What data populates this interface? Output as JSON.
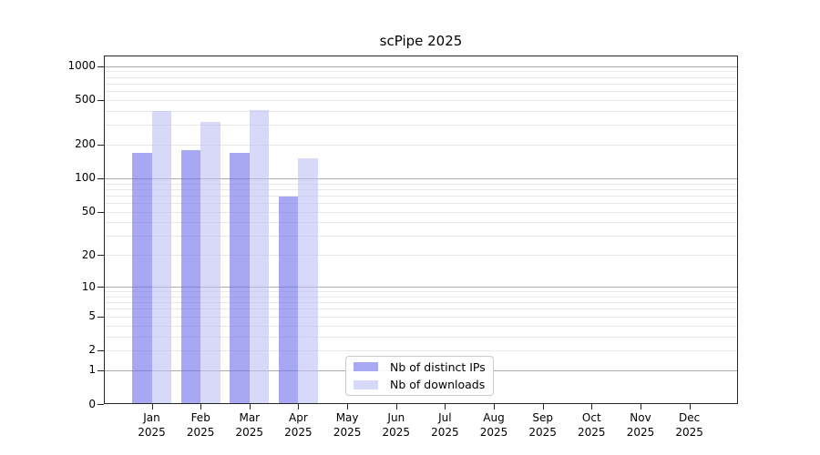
{
  "title": "scPipe 2025",
  "legend": {
    "items": [
      {
        "label": "Nb of distinct IPs",
        "color": "#a9a9f3"
      },
      {
        "label": "Nb of downloads",
        "color": "#d8d8f8"
      }
    ]
  },
  "axis": {
    "y_tick_labels": [
      "1000",
      "500",
      "200",
      "100",
      "50",
      "20",
      "10",
      "5",
      "2",
      "1",
      "0"
    ],
    "y_tick_values": [
      1000,
      500,
      200,
      100,
      50,
      20,
      10,
      5,
      2,
      1,
      0
    ],
    "x_tick_labels_line1": [
      "Jan",
      "Feb",
      "Mar",
      "Apr",
      "May",
      "Jun",
      "Jul",
      "Aug",
      "Sep",
      "Oct",
      "Nov",
      "Dec"
    ],
    "x_tick_labels_line2": "2025"
  },
  "chart_data": {
    "type": "bar",
    "title": "scPipe 2025",
    "xlabel": "",
    "ylabel": "",
    "y_scale": "log10(value+1)",
    "ylim": [
      0,
      1240
    ],
    "y_ticks": [
      0,
      1,
      2,
      5,
      10,
      20,
      50,
      100,
      200,
      500,
      1000
    ],
    "grid": "horizontal log major+minor",
    "legend_position": "inside-bottom-center",
    "categories": [
      "Jan 2025",
      "Feb 2025",
      "Mar 2025",
      "Apr 2025",
      "May 2025",
      "Jun 2025",
      "Jul 2025",
      "Aug 2025",
      "Sep 2025",
      "Oct 2025",
      "Nov 2025",
      "Dec 2025"
    ],
    "series": [
      {
        "name": "Nb of distinct IPs",
        "color": "#a9a9f3",
        "fill_rgba": "rgba(113,113,237,0.62)",
        "values": [
          170,
          177,
          168,
          69,
          null,
          null,
          null,
          null,
          null,
          null,
          null,
          null
        ]
      },
      {
        "name": "Nb of downloads",
        "color": "#d8d8f8",
        "fill_rgba": "rgba(190,190,243,0.60)",
        "values": [
          399,
          318,
          408,
          150,
          null,
          null,
          null,
          null,
          null,
          null,
          null,
          null
        ]
      }
    ]
  }
}
